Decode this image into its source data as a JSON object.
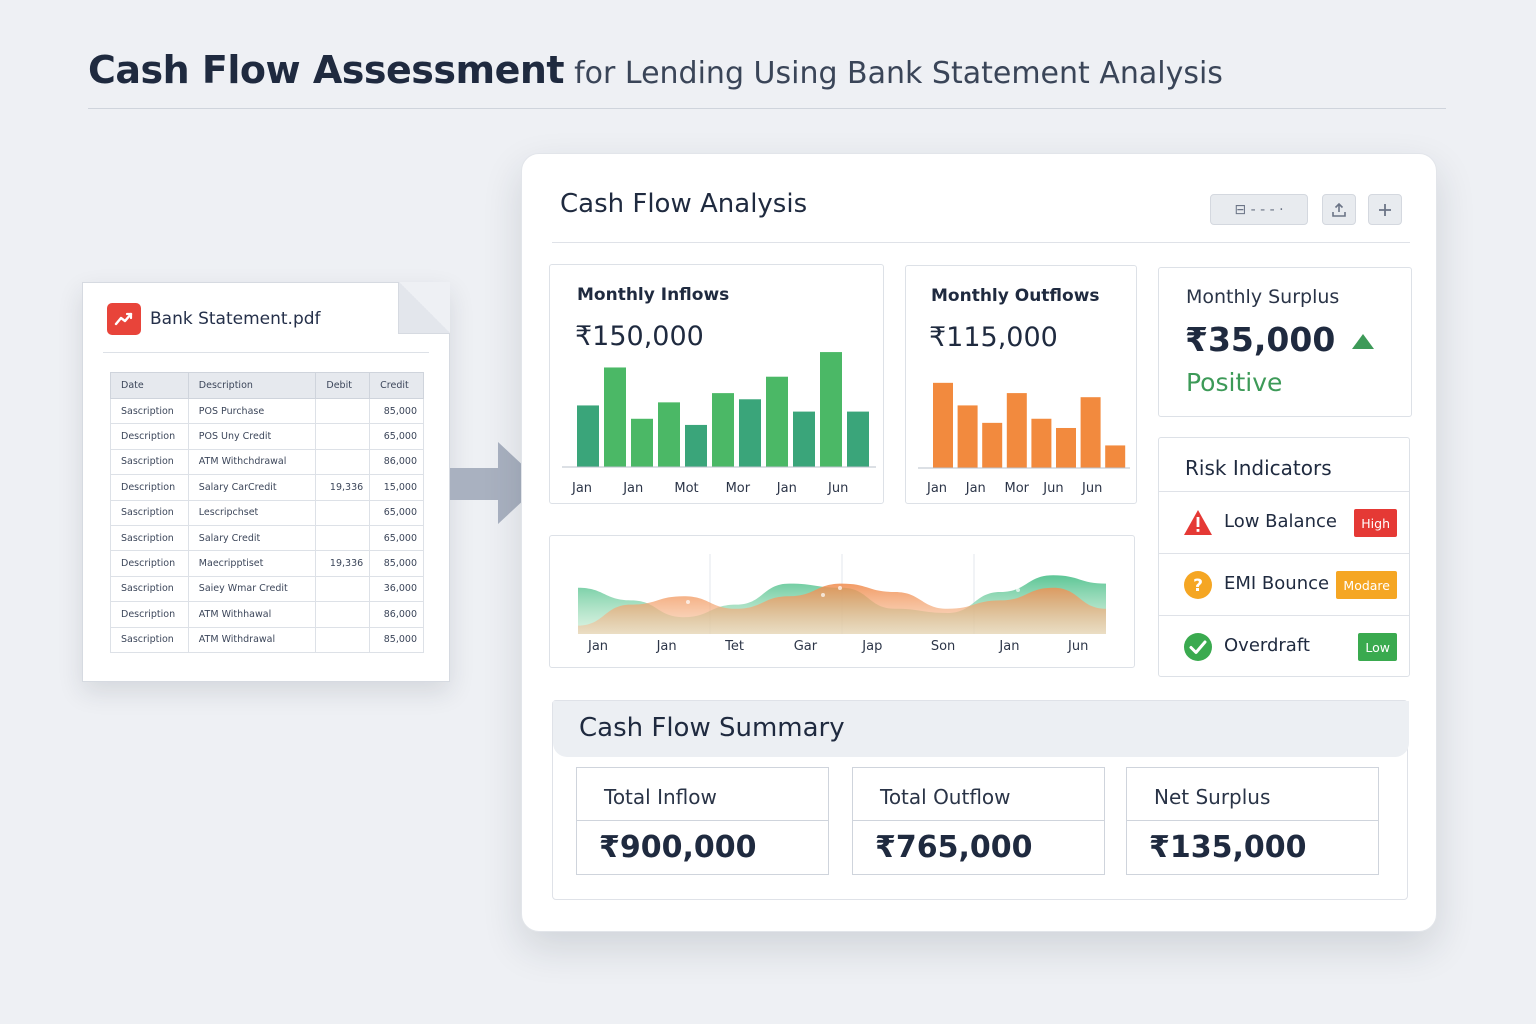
{
  "page": {
    "title_bold": "Cash Flow Assessment",
    "title_light": "for Lending Using Bank Statement Analysis"
  },
  "statement": {
    "file_name": "Bank Statement.pdf",
    "icon": "pdf-trend-icon",
    "columns": [
      "Date",
      "Description",
      "Debit",
      "Credit"
    ],
    "rows": [
      {
        "date": "Sascription",
        "desc": "POS Purchase",
        "debit": "",
        "credit": "85,000"
      },
      {
        "date": "Description",
        "desc": "POS Uny Credit",
        "debit": "",
        "credit": "65,000"
      },
      {
        "date": "Sascription",
        "desc": "ATM Withchdrawal",
        "debit": "",
        "credit": "86,000"
      },
      {
        "date": "Description",
        "desc": "Salary CarCredit",
        "debit": "19,336",
        "credit": "15,000"
      },
      {
        "date": "Sascription",
        "desc": "Lescripchset",
        "debit": "",
        "credit": "65,000"
      },
      {
        "date": "Sascription",
        "desc": "Salary Credit",
        "debit": "",
        "credit": "65,000"
      },
      {
        "date": "Description",
        "desc": "Maecripptiset",
        "debit": "19,336",
        "credit": "85,000"
      },
      {
        "date": "Sascription",
        "desc": "Saiey Wmar Credit",
        "debit": "",
        "credit": "36,000"
      },
      {
        "date": "Description",
        "desc": "ATM Withhawal",
        "debit": "",
        "credit": "86,000"
      },
      {
        "date": "Sascription",
        "desc": "ATM Withdrawal",
        "debit": "",
        "credit": "85,000"
      }
    ]
  },
  "dashboard": {
    "title": "Cash Flow Analysis",
    "toolbar": {
      "view_label": "⊟ - - - ·",
      "export_icon": "upload-icon",
      "add_icon": "plus-icon"
    },
    "inflows": {
      "title": "Monthly Inflows",
      "value": "₹150,000",
      "color": "#4bb866",
      "alt_color": "#3aa57a"
    },
    "outflows": {
      "title": "Monthly Outflows",
      "value": "₹115,000",
      "color": "#f28a3e"
    },
    "surplus": {
      "title": "Monthly Surplus",
      "value": "₹35,000",
      "status": "Positive",
      "trend_icon": "triangle-up-icon",
      "color": "#3d9a58"
    },
    "risk": {
      "title": "Risk Indicators",
      "items": [
        {
          "label": "Low Balance",
          "level": "High",
          "icon": "warning-icon",
          "color": "#e53935"
        },
        {
          "label": "EMI Bounce",
          "level": "Modare",
          "icon": "question-icon",
          "color": "#f5a623"
        },
        {
          "label": "Overdraft",
          "level": "Low",
          "icon": "check-circle-icon",
          "color": "#3aaa4f"
        }
      ]
    },
    "summary": {
      "title": "Cash Flow Summary",
      "cards": [
        {
          "label": "Total Inflow",
          "value": "₹900,000"
        },
        {
          "label": "Total Outflow",
          "value": "₹765,000"
        },
        {
          "label": "Net Surplus",
          "value": "₹135,000"
        }
      ]
    }
  },
  "chart_data": [
    {
      "type": "bar",
      "title": "Monthly Inflows",
      "tick_labels": [
        "Jan",
        "Jan",
        "Mot",
        "Mor",
        "Jan",
        "Jun"
      ],
      "values": [
        60,
        97,
        47,
        63,
        41,
        72,
        66,
        88,
        54,
        112,
        54
      ],
      "grid": false
    },
    {
      "type": "bar",
      "title": "Monthly Outflows",
      "tick_labels": [
        "Jan",
        "Jan",
        "Mor",
        "Jun",
        "Jun"
      ],
      "values": [
        83,
        61,
        44,
        73,
        48,
        39,
        69,
        22
      ],
      "grid": false
    },
    {
      "type": "area",
      "tick_labels": [
        "Jan",
        "Jan",
        "Tet",
        "Gar",
        "Jap",
        "Son",
        "Jan",
        "Jun"
      ],
      "series": [
        {
          "values": [
            0.55,
            0.4,
            0.2,
            0.35,
            0.6,
            0.55,
            0.3,
            0.25,
            0.5,
            0.7,
            0.6
          ]
        },
        {
          "values": [
            0.1,
            0.35,
            0.45,
            0.3,
            0.45,
            0.6,
            0.5,
            0.3,
            0.4,
            0.55,
            0.3
          ]
        }
      ],
      "grid": true
    }
  ]
}
